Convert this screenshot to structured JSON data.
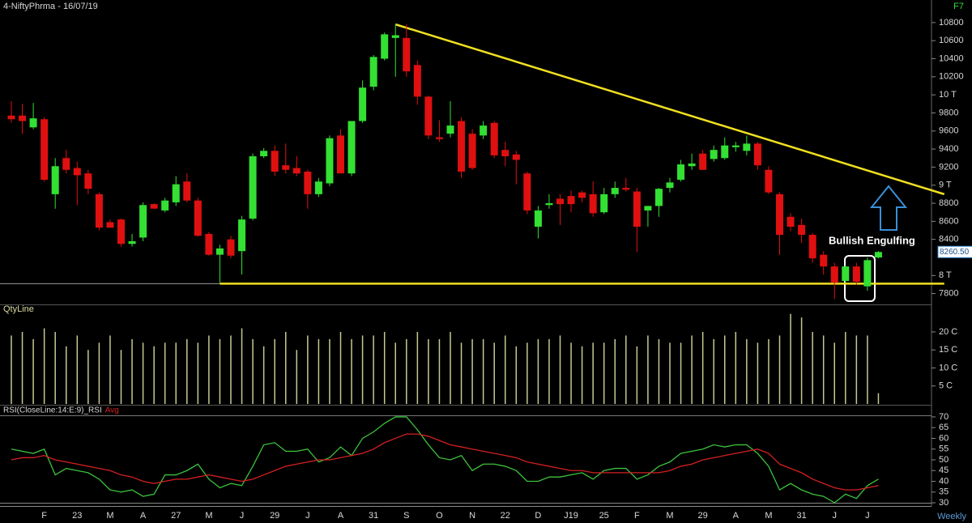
{
  "header": {
    "title": "4-NiftyPhrma - 16/07/19",
    "key": "F7",
    "interval": "Weekly"
  },
  "chart_data": [
    {
      "type": "candlestick",
      "annotation": "Bullish Engulfing",
      "up_color": "#33e033",
      "down_color": "#e01010",
      "open": [
        9770,
        9770,
        9640,
        9730,
        8900,
        9300,
        9190,
        9130,
        8900,
        8590,
        8620,
        8350,
        8420,
        8790,
        8720,
        8810,
        9040,
        8830,
        8460,
        8230,
        8400,
        8270,
        8630,
        9320,
        9380,
        9220,
        9190,
        9150,
        8900,
        9020,
        9550,
        9130,
        9710,
        10090,
        10400,
        10630,
        10630,
        10330,
        9980,
        9530,
        9570,
        9710,
        9570,
        9550,
        9690,
        9390,
        9340,
        9130,
        8540,
        8780,
        8850,
        8880,
        8920,
        8900,
        8700,
        8900,
        8970,
        8930,
        8720,
        8770,
        8970,
        9060,
        9210,
        9350,
        9290,
        9300,
        9420,
        9380,
        9460,
        9170,
        8900,
        8650,
        8560,
        8450,
        8230,
        8100,
        7940,
        8100,
        7880,
        8200
      ],
      "high": [
        9930,
        9900,
        9910,
        9750,
        9300,
        9390,
        9260,
        9170,
        8920,
        8620,
        8630,
        8460,
        8810,
        8800,
        8860,
        9100,
        9130,
        8860,
        8480,
        8340,
        8440,
        8660,
        9350,
        9410,
        9440,
        9460,
        9320,
        9170,
        9080,
        9550,
        9620,
        9710,
        10160,
        10440,
        10690,
        10780,
        10780,
        10380,
        9990,
        9720,
        9930,
        9750,
        9620,
        9710,
        9710,
        9480,
        9380,
        9150,
        8770,
        8900,
        8900,
        8940,
        8940,
        9040,
        8970,
        9040,
        9080,
        8970,
        8770,
        8970,
        9080,
        9280,
        9350,
        9390,
        9440,
        9530,
        9480,
        9550,
        9480,
        9210,
        8920,
        8690,
        8630,
        8470,
        8270,
        8140,
        8110,
        8140,
        8200,
        8270
      ],
      "low": [
        9690,
        9570,
        9620,
        9040,
        8740,
        9130,
        8780,
        8900,
        8500,
        8530,
        8320,
        8320,
        8380,
        8740,
        8700,
        8770,
        8810,
        8430,
        8220,
        7920,
        8190,
        8010,
        8610,
        9300,
        9100,
        9130,
        9100,
        8740,
        8870,
        8990,
        9130,
        9100,
        9690,
        10050,
        10380,
        10200,
        10200,
        9890,
        9510,
        9480,
        9530,
        9080,
        9170,
        9510,
        9300,
        9210,
        9010,
        8680,
        8410,
        8740,
        8560,
        8700,
        8810,
        8650,
        8680,
        8860,
        8930,
        8260,
        8540,
        8650,
        8920,
        9040,
        9170,
        9170,
        9260,
        9280,
        9370,
        9330,
        9170,
        8900,
        8230,
        8490,
        8360,
        8140,
        8010,
        7740,
        7920,
        7900,
        7830,
        8190
      ],
      "close": [
        9730,
        9710,
        9740,
        9060,
        9210,
        9170,
        9110,
        8960,
        8530,
        8530,
        8350,
        8380,
        8780,
        8740,
        8830,
        9010,
        8830,
        8440,
        8230,
        8300,
        8220,
        8620,
        9320,
        9380,
        9150,
        9170,
        9130,
        8900,
        9040,
        9520,
        9130,
        9710,
        10080,
        10420,
        10670,
        10660,
        10260,
        9980,
        9550,
        9510,
        9660,
        9150,
        9190,
        9660,
        9330,
        9320,
        9280,
        8720,
        8720,
        8800,
        8790,
        8790,
        8860,
        8690,
        8900,
        8970,
        8950,
        8540,
        8770,
        8960,
        9030,
        9230,
        9240,
        9170,
        9390,
        9440,
        9440,
        9460,
        9220,
        8920,
        8450,
        8540,
        8450,
        8190,
        8100,
        7920,
        8100,
        7930,
        8170,
        8260.5
      ],
      "price_marker": {
        "value": 8260.5,
        "label": "8260.50"
      },
      "trendline_color": "#f0e020",
      "trendlines": [
        {
          "x": [
            35,
            85
          ],
          "values": [
            10780,
            8900
          ]
        },
        {
          "x": [
            19,
            85
          ],
          "values": [
            7910,
            7910
          ]
        }
      ],
      "ylim": [
        7680,
        11050
      ],
      "yticks": [
        10800,
        10600,
        10400,
        10200,
        {
          "value": 10000,
          "label": "10 T"
        },
        9800,
        9600,
        9400,
        9200,
        {
          "value": 9000,
          "label": "9 T"
        },
        8800,
        8600,
        8400,
        {
          "value": 8000,
          "label": "8 T"
        },
        7800
      ]
    },
    {
      "type": "bar",
      "title": "QtyLine",
      "color": "#c8c890",
      "values": [
        19,
        20,
        18,
        21,
        20,
        16,
        19,
        15,
        17,
        19,
        15,
        18,
        17,
        16,
        17,
        17,
        18,
        17,
        19,
        18,
        19,
        21,
        18,
        16,
        18,
        20,
        15,
        19,
        18,
        18,
        20,
        18,
        19,
        19,
        20,
        17,
        18,
        20,
        18,
        18,
        20,
        17,
        18,
        18,
        17,
        19,
        16,
        17,
        18,
        18,
        19,
        17,
        16,
        17,
        17,
        18,
        19,
        16,
        19,
        18,
        17,
        17,
        19,
        20,
        18,
        19,
        20,
        18,
        17,
        18,
        19,
        25,
        24,
        20,
        19,
        17,
        20,
        19,
        19,
        3
      ],
      "ylim": [
        0,
        27.4
      ],
      "yticks": [
        {
          "value": 20,
          "label": "20 C"
        },
        {
          "value": 15,
          "label": "15 C"
        },
        {
          "value": 10,
          "label": "10 C"
        },
        {
          "value": 5,
          "label": "5 C"
        }
      ]
    },
    {
      "type": "line",
      "categories": [
        null,
        null,
        null,
        "F",
        null,
        null,
        "23",
        null,
        null,
        "M",
        null,
        null,
        "A",
        null,
        null,
        "27",
        null,
        null,
        "M",
        null,
        null,
        "J",
        null,
        null,
        "29",
        null,
        null,
        "J",
        null,
        null,
        "A",
        null,
        null,
        "31",
        null,
        null,
        "S",
        null,
        null,
        "O",
        null,
        null,
        "N",
        null,
        null,
        "22",
        null,
        null,
        "D",
        null,
        null,
        "J19",
        null,
        null,
        "25",
        null,
        null,
        "F",
        null,
        null,
        "M",
        null,
        null,
        "29",
        null,
        null,
        "A",
        null,
        null,
        "M",
        null,
        null,
        "31",
        null,
        null,
        "J",
        null,
        null,
        "J",
        null
      ],
      "series": [
        {
          "name": "RSI(CloseLine:14:E:9)_RSI",
          "color": "#3cc23c",
          "values": [
            55,
            54,
            53,
            55,
            43,
            46,
            45,
            44,
            41,
            36,
            35,
            36,
            33,
            34,
            43,
            43,
            45,
            48,
            41,
            37,
            39,
            38,
            47,
            57,
            58,
            54,
            54,
            55,
            49,
            51,
            56,
            52,
            60,
            63,
            67,
            70,
            70,
            64,
            57,
            51,
            50,
            52,
            45,
            48,
            48,
            47,
            45,
            40,
            40,
            42,
            42,
            43,
            44,
            41,
            45,
            46,
            46,
            41,
            43,
            47,
            49,
            53,
            54,
            55,
            57,
            56,
            57,
            57,
            53,
            47,
            36,
            39,
            36,
            34,
            33,
            30,
            34,
            32,
            38,
            41
          ]
        },
        {
          "name": "Avg",
          "color": "#d42020",
          "values": [
            50,
            51,
            51,
            52,
            50,
            49,
            48,
            47,
            46,
            45,
            43,
            42,
            40,
            39,
            40,
            41,
            41,
            42,
            43,
            42,
            41,
            40,
            41,
            43,
            45,
            47,
            48,
            49,
            50,
            50,
            51,
            52,
            53,
            55,
            58,
            60,
            62,
            62,
            61,
            59,
            57,
            56,
            55,
            54,
            53,
            52,
            51,
            49,
            48,
            47,
            46,
            45,
            45,
            44,
            44,
            44,
            44,
            44,
            44,
            44,
            45,
            47,
            48,
            50,
            51,
            52,
            53,
            54,
            55,
            53,
            48,
            46,
            44,
            41,
            39,
            37,
            36,
            36,
            37,
            38
          ]
        }
      ],
      "ylim": [
        28.5,
        74.5
      ],
      "yticks": [
        70,
        65,
        60,
        55,
        50,
        45,
        40,
        35,
        30
      ]
    }
  ]
}
